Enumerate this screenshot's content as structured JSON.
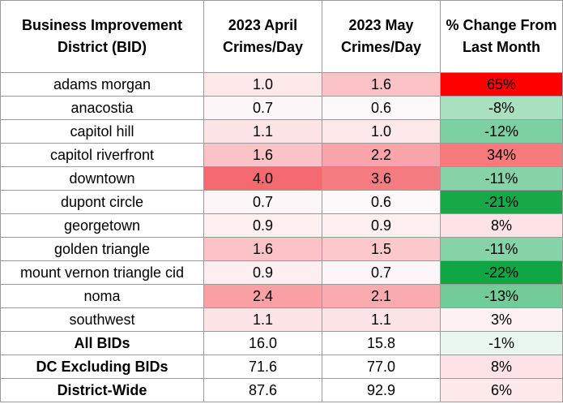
{
  "headers": [
    "Business Improvement District (BID)",
    "2023 April Crimes/Day",
    "2023 May Crimes/Day",
    "% Change From Last Month"
  ],
  "rows": [
    {
      "name": "adams morgan",
      "april": "1.0",
      "may": "1.6",
      "change": "65%",
      "april_color": "#fde9ea",
      "may_color": "#fbc3c6",
      "change_color": "#ff0000",
      "bold": false
    },
    {
      "name": "anacostia",
      "april": "0.7",
      "may": "0.6",
      "change": "-8%",
      "april_color": "#fdf6f8",
      "may_color": "#fdf8fa",
      "change_color": "#a8e0c0",
      "bold": false
    },
    {
      "name": "capitol hill",
      "april": "1.1",
      "may": "1.0",
      "change": "-12%",
      "april_color": "#fde5e7",
      "may_color": "#fde9ea",
      "change_color": "#7dd0a1",
      "bold": false
    },
    {
      "name": "capitol riverfront",
      "april": "1.6",
      "may": "2.2",
      "change": "34%",
      "april_color": "#fbc3c6",
      "may_color": "#f9a4a8",
      "change_color": "#f77a7c",
      "bold": false
    },
    {
      "name": "downtown",
      "april": "4.0",
      "may": "3.6",
      "change": "-11%",
      "april_color": "#f46a70",
      "may_color": "#f57d82",
      "change_color": "#86d3a7",
      "bold": false
    },
    {
      "name": "dupont circle",
      "april": "0.7",
      "may": "0.6",
      "change": "-21%",
      "april_color": "#fdf6f8",
      "may_color": "#fdf8fa",
      "change_color": "#17a948",
      "bold": false
    },
    {
      "name": "georgetown",
      "april": "0.9",
      "may": "0.9",
      "change": "8%",
      "april_color": "#fdeef0",
      "may_color": "#fdeef0",
      "change_color": "#fde3e5",
      "bold": false
    },
    {
      "name": "golden triangle",
      "april": "1.6",
      "may": "1.5",
      "change": "-11%",
      "april_color": "#fbc3c6",
      "may_color": "#fbc8cb",
      "change_color": "#86d3a7",
      "bold": false
    },
    {
      "name": "mount vernon triangle cid",
      "april": "0.9",
      "may": "0.7",
      "change": "-22%",
      "april_color": "#fdeef0",
      "may_color": "#fdf6f8",
      "change_color": "#10a644",
      "bold": false
    },
    {
      "name": "noma",
      "april": "2.4",
      "may": "2.1",
      "change": "-13%",
      "april_color": "#f9a0a4",
      "may_color": "#faabaf",
      "change_color": "#72cc98",
      "bold": false
    },
    {
      "name": "southwest",
      "april": "1.1",
      "may": "1.1",
      "change": "3%",
      "april_color": "#fde5e7",
      "may_color": "#fde5e7",
      "change_color": "#fef1f3",
      "bold": false
    },
    {
      "name": "All BIDs",
      "april": "16.0",
      "may": "15.8",
      "change": "-1%",
      "april_color": "#ffffff",
      "may_color": "#ffffff",
      "change_color": "#eaf7ef",
      "bold": true
    },
    {
      "name": "DC Excluding BIDs",
      "april": "71.6",
      "may": "77.0",
      "change": "8%",
      "april_color": "#ffffff",
      "may_color": "#ffffff",
      "change_color": "#fde3e5",
      "bold": true
    },
    {
      "name": "District-Wide",
      "april": "87.6",
      "may": "92.9",
      "change": "6%",
      "april_color": "#ffffff",
      "may_color": "#ffffff",
      "change_color": "#fde8ea",
      "bold": true
    }
  ]
}
